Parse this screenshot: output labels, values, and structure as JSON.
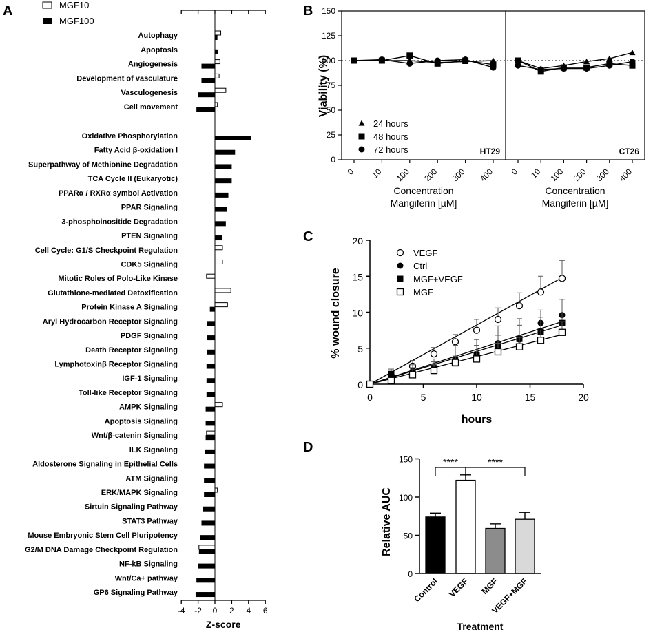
{
  "panel_labels": [
    "A",
    "B",
    "C",
    "D"
  ],
  "chart_data": [
    {
      "panel": "A",
      "type": "bar",
      "orientation": "horizontal",
      "xlabel": "Z-score",
      "xlim": [
        -4,
        6
      ],
      "xticks": [
        "-4",
        "-2",
        "0",
        "2",
        "4",
        "6"
      ],
      "legend": [
        "MGF10",
        "MGF100"
      ],
      "series_colors": {
        "MGF10": "#ffffff",
        "MGF100": "#000000"
      },
      "group1": [
        {
          "term": "Autophagy",
          "MGF10": 0.7,
          "MGF100": 0.3
        },
        {
          "term": "Apoptosis",
          "MGF10": 0.0,
          "MGF100": 0.4
        },
        {
          "term": "Angiogenesis",
          "MGF10": 0.6,
          "MGF100": -1.6
        },
        {
          "term": "Development of vasculature",
          "MGF10": 0.5,
          "MGF100": -1.6
        },
        {
          "term": "Vasculogenesis",
          "MGF10": 1.3,
          "MGF100": -2.0
        },
        {
          "term": "Cell movement",
          "MGF10": 0.3,
          "MGF100": -2.2
        }
      ],
      "group2": [
        {
          "term": "Oxidative Phosphorylation",
          "MGF10": 0.0,
          "MGF100": 4.3
        },
        {
          "term": "Fatty Acid β-oxidation I",
          "MGF10": 0.0,
          "MGF100": 2.4
        },
        {
          "term": "Superpathway of Methionine Degradation",
          "MGF10": 0.0,
          "MGF100": 2.0
        },
        {
          "term": "TCA Cycle II (Eukaryotic)",
          "MGF10": 0.0,
          "MGF100": 2.0
        },
        {
          "term": "PPARα / RXRα symbol Activation",
          "MGF10": 0.0,
          "MGF100": 1.6
        },
        {
          "term": "PPAR Signaling",
          "MGF10": 0.0,
          "MGF100": 1.4
        },
        {
          "term": "3-phosphoinositide Degradation",
          "MGF10": 0.0,
          "MGF100": 1.3
        },
        {
          "term": "PTEN Signaling",
          "MGF10": 0.0,
          "MGF100": 0.9
        },
        {
          "term": "Cell Cycle: G1/S Checkpoint Regulation",
          "MGF10": 0.9,
          "MGF100": 0.0
        },
        {
          "term": "CDK5 Signaling",
          "MGF10": 0.9,
          "MGF100": 0.0
        },
        {
          "term": "Mitotic Roles of Polo-Like Kinase",
          "MGF10": -1.0,
          "MGF100": 0.0
        },
        {
          "term": "Glutathione-mediated Detoxification",
          "MGF10": 1.9,
          "MGF100": 0.0
        },
        {
          "term": "Protein Kinase A Signaling",
          "MGF10": 1.5,
          "MGF100": -0.6
        },
        {
          "term": "Aryl Hydrocarbon Receptor Signaling",
          "MGF10": 0.0,
          "MGF100": -0.9
        },
        {
          "term": "PDGF Signaling",
          "MGF10": 0.0,
          "MGF100": -0.9
        },
        {
          "term": "Death Receptor Signaling",
          "MGF10": 0.0,
          "MGF100": -0.9
        },
        {
          "term": "Lymphotoxinβ Receptor Signaling",
          "MGF10": 0.0,
          "MGF100": -1.0
        },
        {
          "term": "IGF-1 Signaling",
          "MGF10": 0.0,
          "MGF100": -1.0
        },
        {
          "term": "Toll-like Receptor Signaling",
          "MGF10": 0.0,
          "MGF100": -1.0
        },
        {
          "term": "AMPK Signaling",
          "MGF10": 0.9,
          "MGF100": -1.1
        },
        {
          "term": "Apoptosis Signaling",
          "MGF10": 0.0,
          "MGF100": -1.1
        },
        {
          "term": "Wnt/β-catenin Signaling",
          "MGF10": -1.0,
          "MGF100": -1.1
        },
        {
          "term": "ILK Signaling",
          "MGF10": 0.0,
          "MGF100": -1.2
        },
        {
          "term": "Aldosterone Signaling in Epithelial Cells",
          "MGF10": 0.0,
          "MGF100": -1.3
        },
        {
          "term": "ATM Signaling",
          "MGF10": 0.0,
          "MGF100": -1.3
        },
        {
          "term": "ERK/MAPK Signaling",
          "MGF10": 0.3,
          "MGF100": -1.3
        },
        {
          "term": "Sirtuin Signaling Pathway",
          "MGF10": 0.0,
          "MGF100": -1.4
        },
        {
          "term": "STAT3 Pathway",
          "MGF10": 0.0,
          "MGF100": -1.6
        },
        {
          "term": "Mouse Embryonic Stem Cell Pluripotency",
          "MGF10": 0.0,
          "MGF100": -1.8
        },
        {
          "term": "G2/M DNA Damage Checkpoint Regulation",
          "MGF10": -1.9,
          "MGF100": -1.9
        },
        {
          "term": "NF-kB Signaling",
          "MGF10": 0.0,
          "MGF100": -2.0
        },
        {
          "term": "Wnt/Ca+ pathway",
          "MGF10": 0.0,
          "MGF100": -2.2
        },
        {
          "term": "GP6 Signaling Pathway",
          "MGF10": 0.0,
          "MGF100": -2.3
        }
      ]
    },
    {
      "panel": "B",
      "type": "line",
      "ylabel": "Viability (%)",
      "ylim": [
        0,
        150
      ],
      "yticks": [
        "0",
        "25",
        "50",
        "75",
        "100",
        "125",
        "150"
      ],
      "xlabel_line1": "Concentration",
      "xlabel_line2": "Mangiferin [µM]",
      "categories": [
        "0",
        "10",
        "100",
        "200",
        "300",
        "400"
      ],
      "reference_line": 100,
      "legend": [
        "24 hours",
        "48 hours",
        "72 hours"
      ],
      "subplots": [
        {
          "name": "HT29",
          "series": [
            {
              "name": "24 hours",
              "marker": "triangle",
              "values": [
                100,
                100,
                100,
                98,
                99,
                100
              ]
            },
            {
              "name": "48 hours",
              "marker": "square",
              "values": [
                100,
                100,
                105,
                97,
                100,
                96
              ]
            },
            {
              "name": "72 hours",
              "marker": "circle",
              "values": [
                100,
                101,
                97,
                100,
                101,
                93
              ]
            }
          ]
        },
        {
          "name": "CT26",
          "series": [
            {
              "name": "24 hours",
              "marker": "triangle",
              "values": [
                100,
                92,
                95,
                99,
                102,
                108
              ]
            },
            {
              "name": "48 hours",
              "marker": "square",
              "values": [
                100,
                89,
                93,
                93,
                97,
                95
              ]
            },
            {
              "name": "72 hours",
              "marker": "circle",
              "values": [
                95,
                91,
                92,
                92,
                95,
                99
              ]
            }
          ]
        }
      ]
    },
    {
      "panel": "C",
      "type": "scatter",
      "xlabel": "hours",
      "ylabel": "% wound closure",
      "xlim": [
        0,
        20
      ],
      "ylim": [
        0,
        20
      ],
      "xticks": [
        "0",
        "5",
        "10",
        "15",
        "20"
      ],
      "yticks": [
        "0",
        "5",
        "10",
        "15",
        "20"
      ],
      "x": [
        0,
        2,
        4,
        6,
        8,
        10,
        12,
        14,
        16,
        18
      ],
      "series": [
        {
          "name": "VEGF",
          "marker": "open-circle",
          "values": [
            0,
            1.2,
            2.5,
            4.2,
            5.9,
            7.5,
            9.0,
            10.9,
            12.8,
            14.7
          ],
          "errors": [
            0.2,
            0.6,
            0.8,
            0.9,
            1.0,
            1.5,
            1.6,
            1.8,
            2.2,
            2.5
          ],
          "fit_end": 14.8
        },
        {
          "name": "Ctrl",
          "marker": "filled-circle",
          "values": [
            0,
            0.9,
            1.8,
            2.4,
            3.5,
            4.2,
            5.7,
            6.2,
            8.5,
            9.6
          ],
          "errors": [
            0.2,
            0.7,
            0.9,
            1.1,
            1.9,
            2.0,
            2.4,
            2.9,
            1.8,
            2.2
          ],
          "fit_end": 8.2
        },
        {
          "name": "MGF+VEGF",
          "marker": "filled-square",
          "values": [
            0,
            1.4,
            1.5,
            2.2,
            2.9,
            4.0,
            5.2,
            6.3,
            7.3,
            8.5
          ],
          "errors": [
            0.2,
            0.7,
            0.8,
            0.9,
            1.0,
            1.4,
            1.6,
            1.9,
            2.0,
            3.3
          ],
          "fit_end": 8.7
        },
        {
          "name": "MGF",
          "marker": "open-square",
          "values": [
            0,
            0.5,
            1.3,
            1.9,
            3.0,
            3.5,
            4.5,
            5.2,
            6.1,
            7.2
          ],
          "errors": [
            0.2,
            0.5,
            0.7,
            0.8,
            0.9,
            1.0,
            1.2,
            1.3,
            1.4,
            1.5
          ],
          "fit_end": 6.9
        }
      ]
    },
    {
      "panel": "D",
      "type": "bar",
      "xlabel": "Treatment",
      "ylabel": "Relative AUC",
      "ylim": [
        0,
        150
      ],
      "yticks": [
        "0",
        "50",
        "100",
        "150"
      ],
      "categories": [
        "Control",
        "VEGF",
        "MGF",
        "VEGF+MGF"
      ],
      "values": [
        74,
        122,
        59,
        71
      ],
      "errors": [
        5,
        7,
        6,
        9
      ],
      "colors": [
        "#000000",
        "#ffffff",
        "#8c8c8c",
        "#d9d9d9"
      ],
      "significance": [
        {
          "from": "Control",
          "to": "VEGF",
          "label": "****"
        },
        {
          "from": "VEGF",
          "to": "VEGF+MGF",
          "label": "****"
        }
      ]
    }
  ]
}
